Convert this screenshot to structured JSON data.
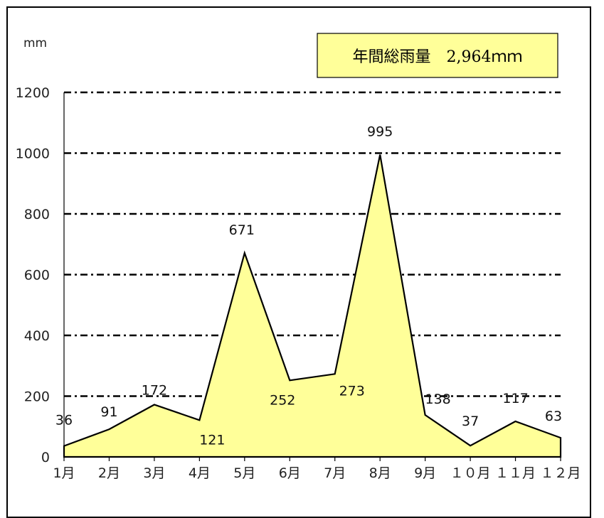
{
  "chart_data": {
    "type": "area",
    "unit_label": "mm",
    "annotation": "年間総雨量　2,964ｍｍ",
    "categories": [
      "1月",
      "2月",
      "3月",
      "4月",
      "5月",
      "6月",
      "7月",
      "8月",
      "9月",
      "１０月",
      "１１月",
      "１２月"
    ],
    "values": [
      36,
      91,
      172,
      121,
      671,
      252,
      273,
      995,
      138,
      37,
      117,
      63
    ],
    "data_labels": [
      "36",
      "91",
      "172",
      "121",
      "671",
      "252",
      "273",
      "995",
      "138",
      "37",
      "117",
      "63"
    ],
    "yticks": [
      "0",
      "200",
      "400",
      "600",
      "800",
      "1000",
      "1200"
    ],
    "ylim": [
      0,
      1200
    ],
    "grid": true,
    "fill_color": "#ffff99",
    "line_color": "#000000",
    "annotation_bg": "#ffff99"
  }
}
